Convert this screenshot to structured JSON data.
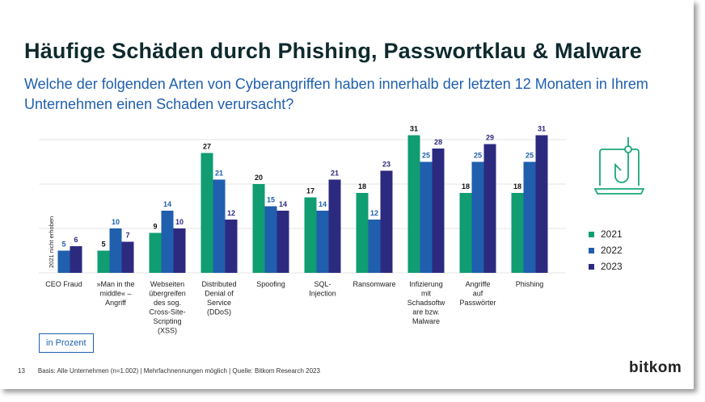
{
  "title": "Häufige Schäden durch Phishing, Passwortklau & Malware",
  "subtitle": "Welche der folgenden Arten von Cyberangriffen haben innerhalb der letzten 12 Monaten in Ihrem Unternehmen einen Schaden verursacht?",
  "unit_label": "in Prozent",
  "footer": {
    "page": "13",
    "note": "Basis: Alle Unternehmen (n=1.002) | Mehrfachnennungen möglich | Quelle: Bitkom Research 2023"
  },
  "logo": "bitkom",
  "icon": "laptop-phishing-hook-icon",
  "chart_data": {
    "type": "bar",
    "title": "",
    "ylim": [
      0,
      32
    ],
    "grid": true,
    "legend_placement": "right",
    "annotation": "2021 nicht erhoben",
    "categories": [
      [
        "CEO Fraud"
      ],
      [
        "»Man in the",
        "middle« –",
        "Angriff"
      ],
      [
        "Webseiten",
        "übergreifen",
        "des sog.",
        "Cross-Site-",
        "Scripting",
        "(XSS)"
      ],
      [
        "Distributed",
        "Denial of",
        "Service",
        "(DDoS)"
      ],
      [
        "Spoofing"
      ],
      [
        "SQL-",
        "Injection"
      ],
      [
        "Ransomware"
      ],
      [
        "Infizierung",
        "mit",
        "Schadsoftw",
        "are bzw.",
        "Malware"
      ],
      [
        "Angriffe",
        "auf",
        "Passwörter"
      ],
      [
        "Phishing"
      ]
    ],
    "series": [
      {
        "name": "2021",
        "color": "#0f9d71",
        "label_color": "#111111",
        "values": [
          null,
          5,
          9,
          27,
          20,
          17,
          18,
          31,
          18,
          18
        ]
      },
      {
        "name": "2022",
        "color": "#1f5fad",
        "label_color": "#1f5fad",
        "values": [
          5,
          10,
          14,
          21,
          15,
          14,
          12,
          25,
          25,
          25
        ]
      },
      {
        "name": "2023",
        "color": "#2c2a7f",
        "label_color": "#2c2a7f",
        "values": [
          6,
          7,
          10,
          12,
          14,
          21,
          23,
          28,
          29,
          31
        ]
      }
    ]
  }
}
